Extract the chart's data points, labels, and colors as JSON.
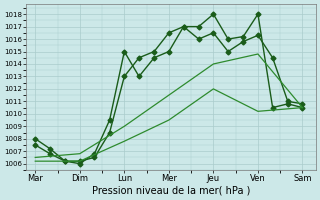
{
  "title": "",
  "xlabel": "Pression niveau de la mer( hPa )",
  "background_color": "#cce8e8",
  "grid_color": "#aacccc",
  "line_color_dark": "#1a5c1a",
  "line_color_light": "#2e8b2e",
  "ylim": [
    1005.5,
    1018.8
  ],
  "yticks": [
    1006,
    1007,
    1008,
    1009,
    1010,
    1011,
    1012,
    1013,
    1014,
    1015,
    1016,
    1017,
    1018
  ],
  "x_labels": [
    "Mar",
    "Dim",
    "Lun",
    "Mer",
    "Jeu",
    "Ven",
    "Sam"
  ],
  "x_positions": [
    0,
    1,
    2,
    3,
    4,
    5,
    6
  ],
  "series": [
    {
      "name": "line1_marked",
      "x": [
        0,
        0.33,
        0.67,
        1.0,
        1.33,
        1.67,
        2.0,
        2.33,
        2.67,
        3.0,
        3.33,
        3.67,
        4.0,
        4.33,
        4.67,
        5.0,
        5.33,
        5.67,
        6.0
      ],
      "y": [
        1008.0,
        1007.2,
        1006.2,
        1006.0,
        1006.8,
        1009.5,
        1015.0,
        1013.0,
        1014.5,
        1015.0,
        1017.0,
        1017.0,
        1018.0,
        1016.0,
        1016.2,
        1018.0,
        1010.5,
        1010.8,
        1010.5
      ],
      "marker": "D",
      "markersize": 2.5,
      "linewidth": 1.0,
      "color": "#1a5c1a"
    },
    {
      "name": "line2_marked",
      "x": [
        0,
        0.33,
        0.67,
        1.0,
        1.33,
        1.67,
        2.0,
        2.33,
        2.67,
        3.0,
        3.33,
        3.67,
        4.0,
        4.33,
        4.67,
        5.0,
        5.33,
        5.67,
        6.0
      ],
      "y": [
        1007.5,
        1006.8,
        1006.2,
        1006.2,
        1006.5,
        1008.5,
        1013.0,
        1014.5,
        1015.0,
        1016.5,
        1017.0,
        1016.0,
        1016.5,
        1015.0,
        1015.8,
        1016.3,
        1014.5,
        1011.0,
        1010.8
      ],
      "marker": "D",
      "markersize": 2.5,
      "linewidth": 1.0,
      "color": "#1a5c1a"
    },
    {
      "name": "line3_smooth",
      "x": [
        0,
        1,
        2,
        3,
        4,
        5,
        6
      ],
      "y": [
        1006.5,
        1006.8,
        1009.0,
        1011.5,
        1014.0,
        1014.8,
        1010.5
      ],
      "marker": "None",
      "markersize": 0,
      "linewidth": 0.9,
      "color": "#2e8b2e"
    },
    {
      "name": "line4_smooth",
      "x": [
        0,
        1,
        2,
        3,
        4,
        5,
        6
      ],
      "y": [
        1006.2,
        1006.2,
        1007.8,
        1009.5,
        1012.0,
        1010.2,
        1010.5
      ],
      "marker": "None",
      "markersize": 0,
      "linewidth": 0.9,
      "color": "#2e8b2e"
    }
  ],
  "ytick_fontsize": 5,
  "xtick_fontsize": 6,
  "xlabel_fontsize": 7
}
